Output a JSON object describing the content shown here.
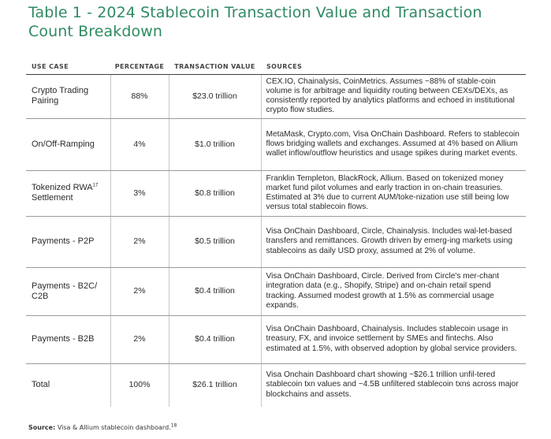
{
  "title": "Table 1 - 2024 Stablecoin Transaction Value and Transaction Count Breakdown",
  "headers": {
    "use_case": "USE CASE",
    "percentage": "PERCENTAGE",
    "transaction_value": "TRANSACTION VALUE",
    "sources": "SOURCES"
  },
  "rows": [
    {
      "use_case": "Crypto Trading Pairing",
      "use_case_sup": "",
      "percentage": "88%",
      "value": "$23.0 trillion",
      "sources": "CEX.IO, Chainalysis, CoinMetrics. Assumes ~88% of stable-coin volume is for arbitrage and liquidity routing between CEXs/DEXs, as consistently reported by analytics platforms and echoed in institutional crypto flow studies."
    },
    {
      "use_case": "On/Off-Ramping",
      "use_case_sup": "",
      "percentage": "4%",
      "value": "$1.0 trillion",
      "sources": "MetaMask, Crypto.com, Visa OnChain Dashboard. Refers to stablecoin flows bridging wallets and exchanges. Assumed at 4% based on Allium wallet inflow/outflow heuristics and usage spikes during market events."
    },
    {
      "use_case": "Tokenized RWA",
      "use_case_sup": "17",
      "use_case_line2": "Settlement",
      "percentage": "3%",
      "value": "$0.8 trillion",
      "sources": "Franklin Templeton, BlackRock, Allium. Based on tokenized money market fund pilot volumes and early traction in on-chain treasuries. Estimated at 3% due to current AUM/toke-nization use still being low versus total stablecoin flows."
    },
    {
      "use_case": "Payments - P2P",
      "use_case_sup": "",
      "percentage": "2%",
      "value": "$0.5 trillion",
      "sources": "Visa OnChain Dashboard, Circle, Chainalysis. Includes wal-let-based transfers and remittances. Growth driven by emerg-ing markets using stablecoins as daily USD proxy, assumed at 2% of volume."
    },
    {
      "use_case": "Payments - B2C/ C2B",
      "use_case_sup": "",
      "percentage": "2%",
      "value": "$0.4 trillion",
      "sources": "Visa OnChain Dashboard, Circle. Derived from Circle's mer-chant integration data (e.g., Shopify, Stripe) and on-chain retail spend tracking. Assumed modest growth at 1.5% as commercial usage expands."
    },
    {
      "use_case": "Payments - B2B",
      "use_case_sup": "",
      "percentage": "2%",
      "value": "$0.4 trillion",
      "sources": "Visa OnChain Dashboard, Chainalysis. Includes stablecoin usage in treasury, FX, and invoice settlement by SMEs and fintechs. Also estimated at 1.5%, with observed adoption by global service providers."
    },
    {
      "use_case": "Total",
      "use_case_sup": "",
      "percentage": "100%",
      "value": "$26.1 trillion",
      "sources": "Visa Onchain Dashboard chart showing ~$26.1 trillion unfil-tered stablecoin txn values and ~4.5B unfiltered stablecoin txns across major blockchains and assets."
    }
  ],
  "footnote": {
    "label": "Source:",
    "text": "Visa & Allium stablecoin dashboard.",
    "sup": "18"
  },
  "colors": {
    "title": "#2f8a62",
    "header_rule": "#3d3d3d",
    "row_rule": "#9a9a9a"
  }
}
